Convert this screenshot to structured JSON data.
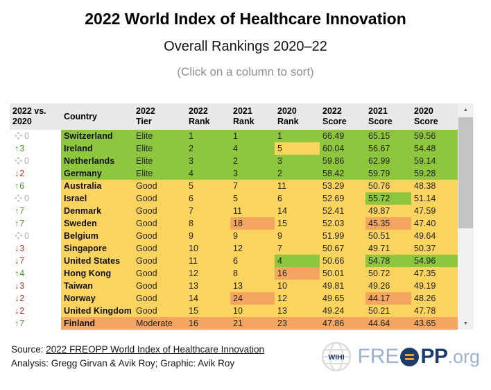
{
  "header": {
    "title": "2022 World Index of Healthcare Innovation",
    "subtitle": "Overall Rankings 2020–22",
    "note": "(Click on a column to sort)"
  },
  "table": {
    "columns": [
      {
        "id": "change",
        "label": "2022 vs.\n2020"
      },
      {
        "id": "country",
        "label": "Country"
      },
      {
        "id": "tier",
        "label": "2022\nTier"
      },
      {
        "id": "rank-2022",
        "label": "2022\nRank"
      },
      {
        "id": "rank-2021",
        "label": "2021\nRank"
      },
      {
        "id": "rank-2020",
        "label": "2020\nRank"
      },
      {
        "id": "score-2022",
        "label": "2022\nScore"
      },
      {
        "id": "score-2021",
        "label": "2021\nScore"
      },
      {
        "id": "score-2020",
        "label": "2020\nScore"
      }
    ],
    "rows": [
      {
        "change": {
          "dir": "none",
          "label": "0"
        },
        "country": "Switzerland",
        "tier": "Elite",
        "values": [
          {
            "v": "1"
          },
          {
            "v": "1"
          },
          {
            "v": "1"
          },
          {
            "v": "66.49"
          },
          {
            "v": "65.15"
          },
          {
            "v": "59.56"
          }
        ]
      },
      {
        "change": {
          "dir": "up",
          "label": "3"
        },
        "country": "Ireland",
        "tier": "Elite",
        "values": [
          {
            "v": "2"
          },
          {
            "v": "4"
          },
          {
            "v": "5",
            "hl": "yellow"
          },
          {
            "v": "60.04"
          },
          {
            "v": "56.67"
          },
          {
            "v": "54.48"
          }
        ]
      },
      {
        "change": {
          "dir": "none",
          "label": "0"
        },
        "country": "Netherlands",
        "tier": "Elite",
        "values": [
          {
            "v": "3"
          },
          {
            "v": "2"
          },
          {
            "v": "3"
          },
          {
            "v": "59.86"
          },
          {
            "v": "62.99"
          },
          {
            "v": "59.14"
          }
        ]
      },
      {
        "change": {
          "dir": "down",
          "label": "2"
        },
        "country": "Germany",
        "tier": "Elite",
        "values": [
          {
            "v": "4"
          },
          {
            "v": "3"
          },
          {
            "v": "2"
          },
          {
            "v": "58.42"
          },
          {
            "v": "59.79"
          },
          {
            "v": "59.28"
          }
        ]
      },
      {
        "change": {
          "dir": "up",
          "label": "6"
        },
        "country": "Australia",
        "tier": "Good",
        "values": [
          {
            "v": "5"
          },
          {
            "v": "7"
          },
          {
            "v": "11"
          },
          {
            "v": "53.29"
          },
          {
            "v": "50.76"
          },
          {
            "v": "48.38"
          }
        ]
      },
      {
        "change": {
          "dir": "none",
          "label": "0"
        },
        "country": "Israel",
        "tier": "Good",
        "values": [
          {
            "v": "6"
          },
          {
            "v": "5"
          },
          {
            "v": "6"
          },
          {
            "v": "52.69"
          },
          {
            "v": "55.72",
            "hl": "green"
          },
          {
            "v": "51.14"
          }
        ]
      },
      {
        "change": {
          "dir": "up",
          "label": "7"
        },
        "country": "Denmark",
        "tier": "Good",
        "values": [
          {
            "v": "7"
          },
          {
            "v": "11"
          },
          {
            "v": "14"
          },
          {
            "v": "52.41"
          },
          {
            "v": "49.87"
          },
          {
            "v": "47.59"
          }
        ]
      },
      {
        "change": {
          "dir": "up",
          "label": "7"
        },
        "country": "Sweden",
        "tier": "Good",
        "values": [
          {
            "v": "8"
          },
          {
            "v": "18",
            "hl": "orange"
          },
          {
            "v": "15"
          },
          {
            "v": "52.03"
          },
          {
            "v": "45.35",
            "hl": "orange"
          },
          {
            "v": "47.40"
          }
        ]
      },
      {
        "change": {
          "dir": "none",
          "label": "0"
        },
        "country": "Belgium",
        "tier": "Good",
        "values": [
          {
            "v": "9"
          },
          {
            "v": "9"
          },
          {
            "v": "9"
          },
          {
            "v": "51.99"
          },
          {
            "v": "50.51"
          },
          {
            "v": "49.64"
          }
        ]
      },
      {
        "change": {
          "dir": "down",
          "label": "3"
        },
        "country": "Singapore",
        "tier": "Good",
        "values": [
          {
            "v": "10"
          },
          {
            "v": "12"
          },
          {
            "v": "7"
          },
          {
            "v": "50.67"
          },
          {
            "v": "49.71"
          },
          {
            "v": "50.37"
          }
        ]
      },
      {
        "change": {
          "dir": "down",
          "label": "7"
        },
        "country": "United States",
        "tier": "Good",
        "values": [
          {
            "v": "11"
          },
          {
            "v": "6"
          },
          {
            "v": "4",
            "hl": "green"
          },
          {
            "v": "50.66"
          },
          {
            "v": "54.78",
            "hl": "green"
          },
          {
            "v": "54.96",
            "hl": "green"
          }
        ]
      },
      {
        "change": {
          "dir": "up",
          "label": "4"
        },
        "country": "Hong Kong",
        "tier": "Good",
        "values": [
          {
            "v": "12"
          },
          {
            "v": "8"
          },
          {
            "v": "16",
            "hl": "orange"
          },
          {
            "v": "50.01"
          },
          {
            "v": "50.72"
          },
          {
            "v": "47.35"
          }
        ]
      },
      {
        "change": {
          "dir": "down",
          "label": "3"
        },
        "country": "Taiwan",
        "tier": "Good",
        "values": [
          {
            "v": "13"
          },
          {
            "v": "13"
          },
          {
            "v": "10"
          },
          {
            "v": "49.81"
          },
          {
            "v": "49.26"
          },
          {
            "v": "49.19"
          }
        ]
      },
      {
        "change": {
          "dir": "down",
          "label": "2"
        },
        "country": "Norway",
        "tier": "Good",
        "values": [
          {
            "v": "14"
          },
          {
            "v": "24",
            "hl": "orange"
          },
          {
            "v": "12"
          },
          {
            "v": "49.65"
          },
          {
            "v": "44.17",
            "hl": "orange"
          },
          {
            "v": "48.26"
          }
        ]
      },
      {
        "change": {
          "dir": "down",
          "label": "2"
        },
        "country": "United Kingdom",
        "tier": "Good",
        "values": [
          {
            "v": "15"
          },
          {
            "v": "10"
          },
          {
            "v": "13"
          },
          {
            "v": "49.24"
          },
          {
            "v": "50.21"
          },
          {
            "v": "47.78"
          }
        ]
      },
      {
        "change": {
          "dir": "up",
          "label": "7"
        },
        "country": "Finland",
        "tier": "Moderate",
        "values": [
          {
            "v": "16"
          },
          {
            "v": "21"
          },
          {
            "v": "23"
          },
          {
            "v": "47.86"
          },
          {
            "v": "44.64"
          },
          {
            "v": "43.65"
          }
        ]
      }
    ]
  },
  "scrollbar": {
    "up_icon": "▲",
    "down_icon": "▼"
  },
  "footer": {
    "source_prefix": "Source: ",
    "source_link": "2022 FREOPP World Index of Healthcare Innovation",
    "analysis": "Analysis: Gregg Girvan & Avik Roy; Graphic: Avik Roy",
    "logo": {
      "wihi": "WIHI",
      "fre": "FRE",
      "pp": "PP",
      "org": ".org"
    }
  },
  "colors": {
    "elite": "#8ec73e",
    "good": "#fbd45f",
    "moderate": "#f4a661",
    "up": "#46962b",
    "down": "#a33a28",
    "neutral": "#aeaeae"
  }
}
